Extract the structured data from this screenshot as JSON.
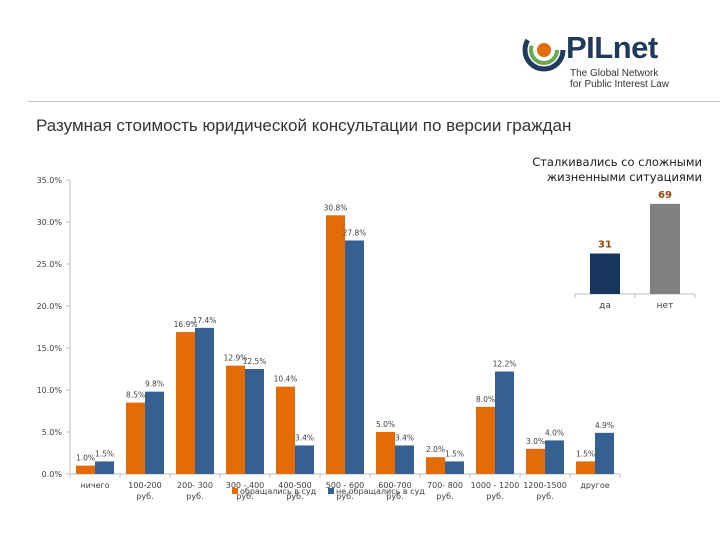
{
  "header": {
    "logo_text": "PILnet",
    "logo_tagline": [
      "The Global Network",
      "for Public Interest Law"
    ],
    "title": "Разумная стоимость юридической консультации по версии граждан"
  },
  "chart_data": [
    {
      "type": "bar",
      "categories": [
        "ничего",
        "100-200 руб.",
        "200- 300 руб.",
        "300 - 400 руб.",
        "400-500 руб.",
        "500 - 600 руб.",
        "600-700 руб.",
        "700- 800 руб.",
        "1000 - 1200 руб.",
        "1200-1500 руб.",
        "другое"
      ],
      "category_labels": [
        [
          "ничего"
        ],
        [
          "100-200",
          "руб."
        ],
        [
          "200- 300",
          "руб."
        ],
        [
          "300 - 400",
          "руб."
        ],
        [
          "400-500",
          "руб."
        ],
        [
          "500 - 600",
          "руб."
        ],
        [
          "600-700",
          "руб."
        ],
        [
          "700- 800",
          "руб."
        ],
        [
          "1000 - 1200",
          "руб."
        ],
        [
          "1200-1500",
          "руб."
        ],
        [
          "другое"
        ]
      ],
      "series": [
        {
          "name": "обращались в суд",
          "values": [
            1.0,
            8.5,
            16.9,
            12.9,
            10.4,
            30.8,
            5.0,
            2.0,
            8.0,
            3.0,
            1.5
          ],
          "labels": [
            "1.0%",
            "8.5%",
            "16.9%",
            "12.9%",
            "10.4%",
            "30.8%",
            "5.0%",
            "2.0%",
            "8.0%",
            "3.0%",
            "1.5%"
          ]
        },
        {
          "name": "не обращались в суд",
          "values": [
            1.5,
            9.8,
            17.4,
            12.5,
            3.4,
            27.8,
            3.4,
            1.5,
            12.2,
            4.0,
            4.9
          ],
          "labels": [
            "1.5%",
            "9.8%",
            "17.4%",
            "12.5%",
            "3.4%",
            "27.8%",
            "3.4%",
            "1.5%",
            "12.2%",
            "4.0%",
            "4.9%"
          ]
        }
      ],
      "ylim": [
        0,
        35
      ],
      "yticks": [
        "0.0%",
        "5.0%",
        "10.0%",
        "15.0%",
        "20.0%",
        "25.0%",
        "30.0%",
        "35.0%"
      ],
      "grid": false,
      "legend": "bottom",
      "colors": [
        "#e36c09",
        "#376092"
      ]
    },
    {
      "type": "bar",
      "title": "Сталкивались со сложными жизненными ситуациями",
      "title_lines": [
        "Сталкивались со сложными",
        "жизненными ситуациями"
      ],
      "categories": [
        "да",
        "нет"
      ],
      "values": [
        31,
        69
      ],
      "labels": [
        "31",
        "69"
      ],
      "colors": [
        "#17365d",
        "#808080"
      ],
      "label_color": "#984806"
    }
  ]
}
